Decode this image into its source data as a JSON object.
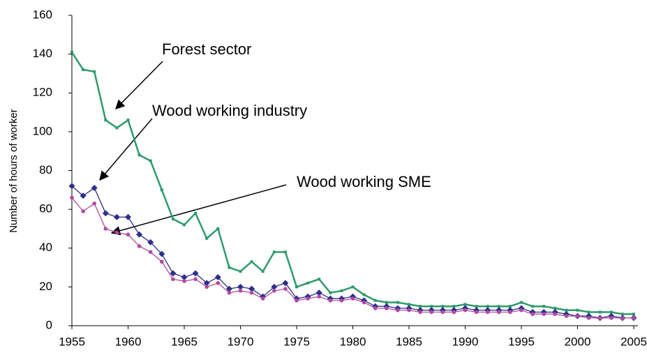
{
  "chart_data": {
    "type": "line",
    "y_label": "Number of hours of worker",
    "x": [
      1955,
      1956,
      1957,
      1958,
      1959,
      1960,
      1961,
      1962,
      1963,
      1964,
      1965,
      1966,
      1967,
      1968,
      1969,
      1970,
      1971,
      1972,
      1973,
      1974,
      1975,
      1976,
      1977,
      1978,
      1979,
      1980,
      1981,
      1982,
      1983,
      1984,
      1985,
      1986,
      1987,
      1988,
      1989,
      1990,
      1991,
      1992,
      1993,
      1994,
      1995,
      1996,
      1997,
      1998,
      1999,
      2000,
      2001,
      2002,
      2003,
      2004,
      2005
    ],
    "series": [
      {
        "name": "Forest sector",
        "color": "#2e9a6a",
        "marker": "square",
        "values": [
          141,
          132,
          131,
          106,
          102,
          106,
          88,
          85,
          70,
          55,
          52,
          58,
          45,
          50,
          30,
          28,
          33,
          28,
          38,
          38,
          20,
          22,
          24,
          17,
          18,
          20,
          16,
          13,
          12,
          12,
          11,
          10,
          10,
          10,
          10,
          11,
          10,
          10,
          10,
          10,
          12,
          10,
          10,
          9,
          8,
          8,
          7,
          7,
          7,
          6,
          6
        ]
      },
      {
        "name": "Wood working industry",
        "color": "#2e2e8a",
        "marker": "diamond",
        "values": [
          72,
          67,
          71,
          58,
          56,
          56,
          47,
          43,
          37,
          27,
          25,
          27,
          22,
          25,
          19,
          20,
          19,
          15,
          20,
          22,
          14,
          15,
          17,
          14,
          14,
          15,
          13,
          10,
          10,
          9,
          9,
          8,
          8,
          8,
          8,
          9,
          8,
          8,
          8,
          8,
          9,
          7,
          7,
          7,
          6,
          5,
          5,
          4,
          5,
          4,
          4
        ]
      },
      {
        "name": "Wood working SME",
        "color": "#b04aa0",
        "marker": "circle",
        "values": [
          66,
          59,
          63,
          50,
          48,
          47,
          41,
          38,
          33,
          24,
          23,
          24,
          20,
          22,
          17,
          18,
          17,
          14,
          18,
          19,
          13,
          14,
          15,
          13,
          13,
          14,
          12,
          9,
          9,
          8,
          8,
          7,
          7,
          7,
          7,
          8,
          7,
          7,
          7,
          7,
          8,
          6,
          6,
          6,
          5,
          5,
          4,
          4,
          4,
          4,
          4
        ]
      }
    ],
    "xlim": [
      1955,
      2005
    ],
    "xticks": [
      1955,
      1960,
      1965,
      1970,
      1975,
      1980,
      1985,
      1990,
      1995,
      2000,
      2005
    ],
    "ylim": [
      0,
      160
    ],
    "yticks": [
      0,
      20,
      40,
      60,
      80,
      100,
      120,
      140,
      160
    ],
    "grid": false
  }
}
